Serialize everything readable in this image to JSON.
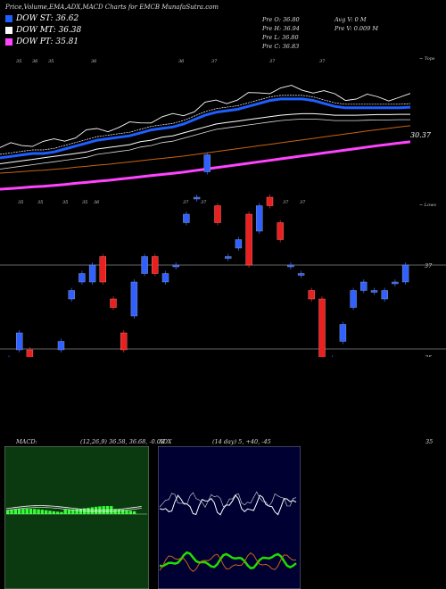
{
  "header": {
    "title": "Price,Volume,EMA,ADX,MACD Charts for EMCB MunafaSutra.com"
  },
  "legend": [
    {
      "label": "DOW ST: 36.62",
      "color": "#1f5fff"
    },
    {
      "label": "DOW MT: 36.38",
      "color": "#ffffff"
    },
    {
      "label": "DOW PT: 35.81",
      "color": "#ff44ff"
    }
  ],
  "ohlc": {
    "open": "Pre   O: 36.80",
    "high": "Pre   H: 36.94",
    "low": "Pre   L: 36.80",
    "close": "Pre   C: 36.83",
    "avg_vol": "Avg V: 0   M",
    "pre_vol": "Pre   V: 0.009 M"
  },
  "colors": {
    "up": "#3060ff",
    "down": "#e82020",
    "ema_short": "#1f5fff",
    "ema_mid": "#ffffff",
    "ema_long": "#ff44ff",
    "ema_orange": "#c86414",
    "adx_plus": "#22dd00",
    "adx_minus": "#c86414",
    "macd_bg": "#0a3a0a",
    "adx_bg": "#000033"
  },
  "chart_data": {
    "type": "candlestick",
    "price_labels": {
      "top_right": "~ Tops",
      "mid_right": "~ Lows",
      "ema_value": "30.37",
      "level_37": "37",
      "level_35": "35"
    },
    "top_ticks": [
      "35",
      "36",
      "35",
      "36",
      "36",
      "37",
      "37",
      "37"
    ],
    "low_ticks": [
      "35",
      "35",
      "35",
      "35",
      "36",
      "37",
      "37",
      "37",
      "37"
    ],
    "candles": [
      {
        "o": 35.8,
        "c": 35.9
      },
      {
        "o": 36.0,
        "c": 36.2
      },
      {
        "o": 36.0,
        "c": 35.9
      },
      {
        "o": 35.8,
        "c": 35.7
      },
      {
        "o": 35.6,
        "c": 35.7
      },
      {
        "o": 36.0,
        "c": 36.1
      },
      {
        "o": 36.6,
        "c": 36.7
      },
      {
        "o": 36.8,
        "c": 36.9
      },
      {
        "o": 36.8,
        "c": 37.0
      },
      {
        "o": 37.1,
        "c": 36.8
      },
      {
        "o": 36.6,
        "c": 36.5
      },
      {
        "o": 36.2,
        "c": 36.0
      },
      {
        "o": 36.4,
        "c": 36.8
      },
      {
        "o": 36.9,
        "c": 37.1
      },
      {
        "o": 37.1,
        "c": 36.9
      },
      {
        "o": 36.8,
        "c": 36.9
      },
      {
        "o": 37.0,
        "c": 37.0
      },
      {
        "o": 37.5,
        "c": 37.6
      },
      {
        "o": 37.8,
        "c": 37.8
      },
      {
        "o": 38.1,
        "c": 38.3
      },
      {
        "o": 37.7,
        "c": 37.5
      },
      {
        "o": 37.1,
        "c": 37.1
      },
      {
        "o": 37.2,
        "c": 37.3
      },
      {
        "o": 37.6,
        "c": 37.0
      },
      {
        "o": 37.4,
        "c": 37.7
      },
      {
        "o": 37.8,
        "c": 37.7
      },
      {
        "o": 37.5,
        "c": 37.3
      },
      {
        "o": 37.0,
        "c": 37.0
      },
      {
        "o": 36.9,
        "c": 36.9
      },
      {
        "o": 36.7,
        "c": 36.6
      },
      {
        "o": 36.6,
        "c": 35.9
      },
      {
        "o": 35.6,
        "c": 35.9
      },
      {
        "o": 36.1,
        "c": 36.3
      },
      {
        "o": 36.5,
        "c": 36.7
      },
      {
        "o": 36.7,
        "c": 36.8
      },
      {
        "o": 36.7,
        "c": 36.7
      },
      {
        "o": 36.6,
        "c": 36.7
      },
      {
        "o": 36.8,
        "c": 36.8
      },
      {
        "o": 36.8,
        "c": 37.0
      }
    ],
    "ema_series": {
      "short": [
        34.9,
        34.95,
        35.0,
        35.05,
        35.05,
        35.1,
        35.2,
        35.3,
        35.4,
        35.5,
        35.55,
        35.6,
        35.65,
        35.75,
        35.85,
        35.9,
        35.95,
        36.05,
        36.2,
        36.35,
        36.45,
        36.5,
        36.55,
        36.65,
        36.75,
        36.85,
        36.9,
        36.9,
        36.9,
        36.85,
        36.75,
        36.65,
        36.6,
        36.6,
        36.6,
        36.6,
        36.6,
        36.6,
        36.62
      ],
      "mid": [
        34.7,
        34.75,
        34.8,
        34.85,
        34.9,
        34.95,
        35.0,
        35.05,
        35.1,
        35.2,
        35.25,
        35.3,
        35.35,
        35.45,
        35.5,
        35.6,
        35.65,
        35.75,
        35.85,
        35.95,
        36.05,
        36.1,
        36.15,
        36.2,
        36.25,
        36.3,
        36.35,
        36.38,
        36.4,
        36.4,
        36.38,
        36.35,
        36.35,
        36.35,
        36.36,
        36.37,
        36.37,
        36.38,
        36.38
      ],
      "long": [
        34.2,
        34.22,
        34.25,
        34.28,
        34.3,
        34.33,
        34.36,
        34.4,
        34.43,
        34.47,
        34.5,
        34.54,
        34.58,
        34.62,
        34.66,
        34.7,
        34.74,
        34.78,
        34.83,
        34.88,
        34.93,
        34.98,
        35.03,
        35.08,
        35.13,
        35.18,
        35.23,
        35.28,
        35.33,
        35.38,
        35.43,
        35.48,
        35.53,
        35.58,
        35.63,
        35.68,
        35.72,
        35.77,
        35.81
      ]
    },
    "macd": {
      "label": "MACD:",
      "params": "(12,26,9) 36.58, 36.68, -0.03"
    },
    "adx": {
      "label": "ADX",
      "params": "(14 day) 5, +40, -45"
    },
    "right_label_35": "35"
  }
}
